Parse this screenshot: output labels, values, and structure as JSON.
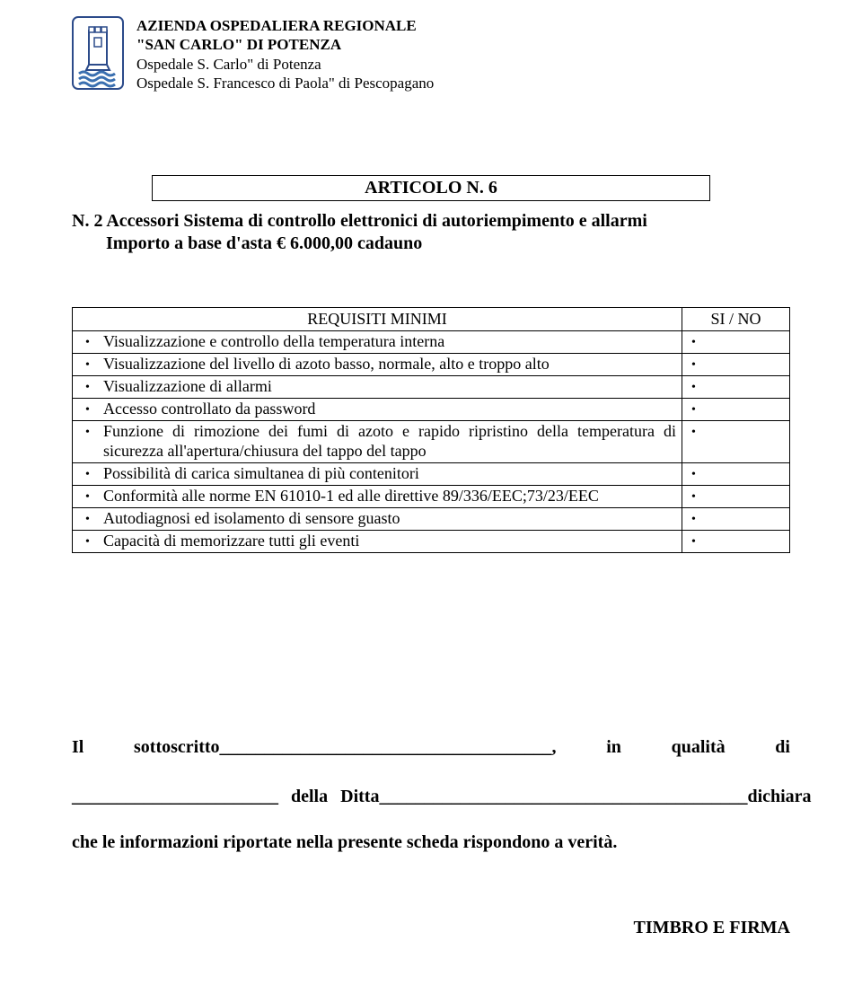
{
  "header": {
    "line1": "AZIENDA OSPEDALIERA REGIONALE",
    "line2": "\"SAN CARLO\" DI POTENZA",
    "line3": "Ospedale S. Carlo\" di Potenza",
    "line4": "Ospedale S. Francesco di Paola\" di Pescopagano"
  },
  "logo": {
    "tower_fill": "#ffffff",
    "tower_stroke": "#2c4b8a",
    "waves_fill": "#3a6fb0"
  },
  "article": {
    "box_label": "ARTICOLO N. 6",
    "line1": "N. 2 Accessori Sistema di controllo elettronici di autoriempimento e allarmi",
    "line2": "Importo a base d'asta € 6.000,00 cadauno"
  },
  "table": {
    "header_left": "REQUISITI MINIMI",
    "header_right": "SI / NO",
    "rows": [
      "Visualizzazione e controllo della temperatura interna",
      "Visualizzazione del livello di azoto basso, normale, alto e troppo alto",
      "Visualizzazione di allarmi",
      "Accesso controllato da password",
      "Funzione di rimozione dei fumi di azoto e rapido ripristino della temperatura di sicurezza all'apertura/chiusura del tappo del tappo",
      "Possibilità di carica simultanea di più contenitori",
      "Conformità alle norme EN 61010-1 ed alle direttive 89/336/EEC;73/23/EEC",
      "Autodiagnosi ed isolamento di sensore guasto",
      "Capacità di memorizzare tutti gli eventi"
    ]
  },
  "footer": {
    "line1_left": "Il",
    "line1_mid": "sottoscritto_____________________________________,",
    "line1_in": "in",
    "line1_qualita": "qualità",
    "line1_di": "di",
    "line2_left": "_______________________",
    "line2_mid": "della",
    "line2_ditta": "Ditta_________________________________________dichiara",
    "line3": "che le informazioni riportate nella presente scheda rispondono a verità.",
    "timbro": "TIMBRO E FIRMA"
  }
}
